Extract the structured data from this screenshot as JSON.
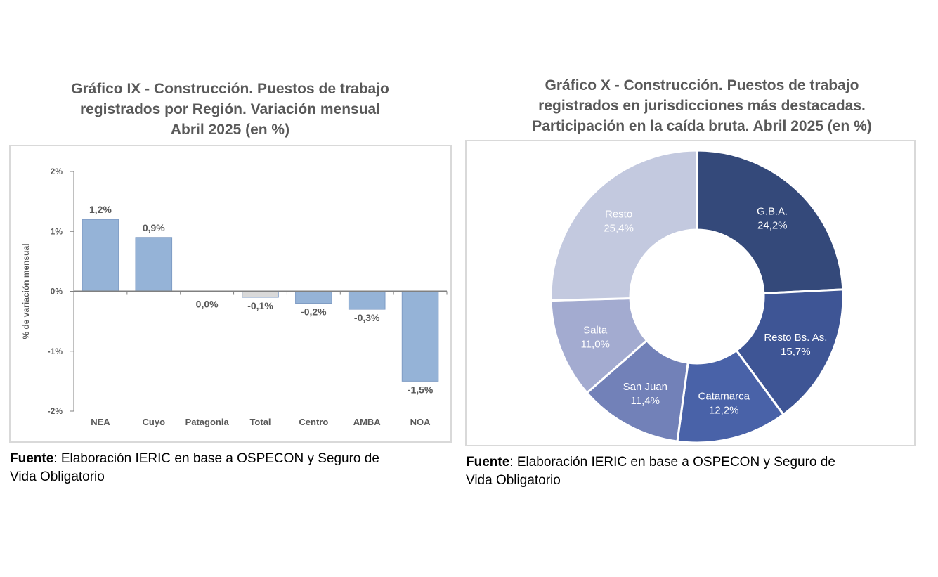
{
  "left": {
    "title_lines": [
      "Gráfico IX - Construcción. Puestos de trabajo",
      "registrados por Región. Variación mensual",
      "Abril 2025 (en %)"
    ],
    "source_label": "Fuente",
    "source_rest_line1": ": Elaboración IERIC en base a OSPECON y Seguro de",
    "source_line2": "Vida Obligatorio"
  },
  "right": {
    "title_lines": [
      "Gráfico X - Construcción. Puestos de trabajo",
      "registrados en jurisdicciones más destacadas.",
      "Participación en la caída bruta. Abril 2025 (en %)"
    ],
    "source_label": "Fuente",
    "source_rest_line1": ": Elaboración IERIC en base a OSPECON y Seguro de",
    "source_line2": "Vida Obligatorio"
  },
  "chart_data": [
    {
      "type": "bar",
      "title": "Gráfico IX - Construcción. Puestos de trabajo registrados por Región. Variación mensual Abril 2025 (en %)",
      "ylabel": "% de variación mensual",
      "xlabel": "",
      "categories": [
        "NEA",
        "Cuyo",
        "Patagonia",
        "Total",
        "Centro",
        "AMBA",
        "NOA"
      ],
      "values": [
        1.2,
        0.9,
        0.0,
        -0.1,
        -0.2,
        -0.3,
        -1.5
      ],
      "data_labels": [
        "1,2%",
        "0,9%",
        "0,0%",
        "-0,1%",
        "-0,2%",
        "-0,3%",
        "-1,5%"
      ],
      "ylim": [
        -2,
        2
      ],
      "yticks": [
        2,
        1,
        0,
        -1,
        -2
      ],
      "ytick_labels": [
        "2%",
        "1%",
        "0%",
        "-1%",
        "-2%"
      ],
      "grid": false,
      "colors": {
        "bar": "#95b3d7",
        "total_bar": "#d9d9d9",
        "axis": "#808080"
      }
    },
    {
      "type": "pie",
      "donut": true,
      "title": "Gráfico X - Construcción. Puestos de trabajo registrados en jurisdicciones más destacadas. Participación en la caída bruta. Abril 2025 (en %)",
      "slices": [
        {
          "label": "G.B.A.",
          "value": 24.2,
          "value_label": "24,2%",
          "color": "#34497a",
          "text_color": "#ffffff"
        },
        {
          "label": "Resto Bs. As.",
          "value": 15.7,
          "value_label": "15,7%",
          "color": "#3e5595",
          "text_color": "#ffffff"
        },
        {
          "label": "Catamarca",
          "value": 12.2,
          "value_label": "12,2%",
          "color": "#4962a8",
          "text_color": "#ffffff"
        },
        {
          "label": "San Juan",
          "value": 11.4,
          "value_label": "11,4%",
          "color": "#7281b8",
          "text_color": "#ffffff"
        },
        {
          "label": "Salta",
          "value": 11.0,
          "value_label": "11,0%",
          "color": "#a3abd0",
          "text_color": "#ffffff"
        },
        {
          "label": "Resto",
          "value": 25.4,
          "value_label": "25,4%",
          "color": "#c3c9df",
          "text_color": "#ffffff"
        }
      ]
    }
  ]
}
